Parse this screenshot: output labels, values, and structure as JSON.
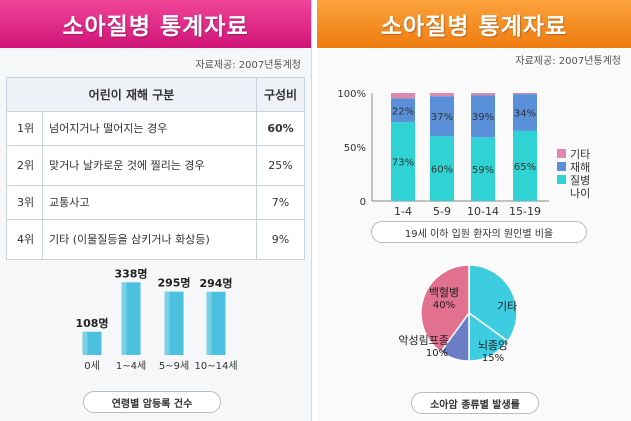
{
  "left_panel": {
    "title": "소아질병 통계자료",
    "source": "자료제공: 2007년통계청",
    "table": {
      "header_cause": "어린이 재해 구분",
      "header_pct": "구성비",
      "rows": [
        {
          "rank": "1위",
          "cause": "넘어지거나 떨어지는 경우",
          "pct": "60%"
        },
        {
          "rank": "2위",
          "cause": "맞거나 날카로운 것에 찔리는 경우",
          "pct": "25%"
        },
        {
          "rank": "3위",
          "cause": "교통사고",
          "pct": "7%"
        },
        {
          "rank": "4위",
          "cause": "기타 (이물질등을 삼키거나 화상등)",
          "pct": "9%"
        }
      ]
    },
    "caption": "연령별 암등록 건수"
  },
  "right_panel": {
    "title": "소아질병 통계자료",
    "source": "자료제공: 2007년통계청",
    "stack_caption": "19세 이하 입원 환자의 원인별 비율",
    "pie_caption": "소아암 종류별 발생률"
  },
  "chart_data": [
    {
      "type": "bar",
      "categories": [
        "0세",
        "1~4세",
        "5~9세",
        "10~14세"
      ],
      "values": [
        108,
        338,
        295,
        294
      ],
      "value_labels": [
        "108명",
        "338명",
        "295명",
        "294명"
      ],
      "title": "연령별 암등록 건수",
      "ylim": [
        0,
        400
      ],
      "color": "#4cc0df"
    },
    {
      "type": "bar",
      "stacked": true,
      "categories": [
        "1-4",
        "5-9",
        "10-14",
        "15-19"
      ],
      "yticks": [
        "0",
        "50%",
        "100%"
      ],
      "ylim": [
        0,
        100
      ],
      "series": [
        {
          "name": "질병",
          "color": "#2fd3d3",
          "values": [
            73,
            60,
            59,
            65
          ],
          "labels": [
            "73%",
            "60%",
            "59%",
            "65%"
          ]
        },
        {
          "name": "재해",
          "color": "#5a8fd9",
          "values": [
            22,
            37,
            39,
            34
          ],
          "labels": [
            "22%",
            "37%",
            "39%",
            "34%"
          ]
        },
        {
          "name": "기타",
          "color": "#e089b0",
          "values": [
            5,
            3,
            2,
            1
          ],
          "labels": [
            "",
            "",
            "",
            ""
          ]
        }
      ],
      "legend": [
        "기타",
        "재해",
        "질병",
        "나이"
      ],
      "legend_placement": "right",
      "title": "19세 이하 입원 환자의 원인별 비율"
    },
    {
      "type": "pie",
      "slices": [
        {
          "label": "기타",
          "value": 35,
          "color": "#3ccde0",
          "pct_label": ""
        },
        {
          "label": "뇌종양",
          "value": 15,
          "color": "#3ccde0",
          "pct_label": "15%"
        },
        {
          "label": "악성림프종",
          "value": 10,
          "color": "#6b7dc7",
          "pct_label": "10%"
        },
        {
          "label": "백혈병",
          "value": 40,
          "color": "#e2708f",
          "pct_label": "40%"
        }
      ],
      "title": "소아암 종류별 발생률"
    }
  ]
}
